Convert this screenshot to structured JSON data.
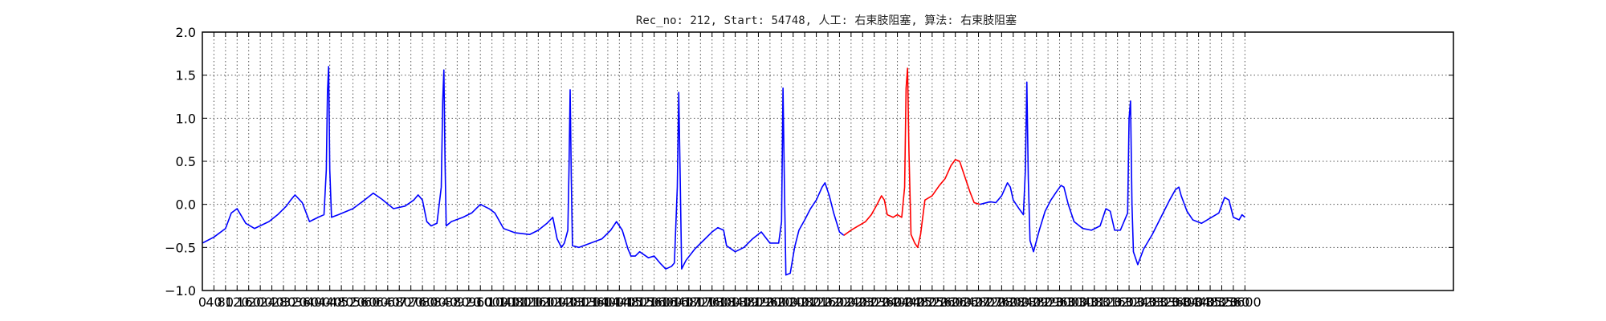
{
  "chart_data": {
    "type": "line",
    "title": "Rec_no: 212, Start: 54748, 人工: 右束肢阻塞, 算法: 右束肢阻塞",
    "xlabel": "",
    "ylabel": "",
    "xlim": [
      0,
      4320
    ],
    "ylim": [
      -1.0,
      2.0
    ],
    "grid": true,
    "y_ticks": [
      -1.0,
      -0.5,
      0.0,
      0.5,
      1.0,
      1.5,
      2.0
    ],
    "y_tick_labels": [
      "−1.0",
      "−0.5",
      "0.0",
      "0.5",
      "1.0",
      "1.5",
      "2.0"
    ],
    "x_ticks": [
      0,
      40,
      80,
      120,
      160,
      200,
      240,
      280,
      320,
      360,
      400,
      440,
      480,
      520,
      560,
      600,
      640,
      680,
      720,
      760,
      800,
      840,
      880,
      920,
      960,
      1000,
      1040,
      1080,
      1120,
      1160,
      1200,
      1240,
      1280,
      1320,
      1360,
      1400,
      1440,
      1480,
      1520,
      1560,
      1600,
      1640,
      1680,
      1720,
      1760,
      1800,
      1840,
      1880,
      1920,
      1960,
      2000,
      2040,
      2080,
      2120,
      2160,
      2200,
      2240,
      2280,
      2320,
      2360,
      2400,
      2440,
      2480,
      2520,
      2560,
      2600,
      2640,
      2680,
      2720,
      2760,
      2800,
      2840,
      2880,
      2920,
      2960,
      3000,
      3040,
      3080,
      3120,
      3160,
      3200,
      3240,
      3280,
      3320,
      3360,
      3400,
      3440,
      3480,
      3520,
      3560,
      3600
    ],
    "x_tick_labels": [
      "0",
      "40",
      "80",
      "120",
      "160",
      "200",
      "240",
      "280",
      "320",
      "360",
      "400",
      "440",
      "480",
      "520",
      "560",
      "600",
      "640",
      "680",
      "720",
      "760",
      "800",
      "840",
      "880",
      "920",
      "960",
      "1000",
      "1040",
      "1080",
      "1120",
      "1160",
      "1200",
      "1240",
      "1280",
      "1320",
      "1360",
      "1400",
      "1440",
      "1480",
      "1520",
      "1560",
      "1600",
      "1640",
      "1680",
      "1720",
      "1760",
      "1800",
      "1840",
      "1880",
      "1920",
      "1960",
      "2000",
      "2040",
      "2080",
      "2120",
      "2160",
      "2200",
      "2240",
      "2280",
      "2320",
      "2360",
      "2400",
      "2440",
      "2480",
      "2520",
      "2560",
      "2600",
      "2640",
      "2680",
      "2720",
      "2760",
      "2800",
      "2840",
      "2880",
      "2920",
      "2960",
      "3000",
      "3040",
      "3080",
      "3120",
      "3160",
      "3200",
      "3240",
      "3280",
      "3320",
      "3360",
      "3400",
      "3440",
      "3480",
      "3520",
      "3560",
      "3600"
    ],
    "series": [
      {
        "color": "#0000ff",
        "segment": "before",
        "points": [
          [
            0,
            -0.45
          ],
          [
            40,
            -0.38
          ],
          [
            80,
            -0.28
          ],
          [
            100,
            -0.1
          ],
          [
            120,
            -0.05
          ],
          [
            150,
            -0.22
          ],
          [
            180,
            -0.28
          ],
          [
            230,
            -0.2
          ],
          [
            260,
            -0.12
          ],
          [
            290,
            -0.02
          ],
          [
            305,
            0.05
          ],
          [
            320,
            0.11
          ],
          [
            345,
            0.02
          ],
          [
            370,
            -0.2
          ],
          [
            400,
            -0.15
          ],
          [
            420,
            -0.12
          ],
          [
            428,
            0.4
          ],
          [
            432,
            1.3
          ],
          [
            436,
            1.6
          ],
          [
            440,
            0.4
          ],
          [
            446,
            -0.15
          ],
          [
            470,
            -0.12
          ],
          [
            520,
            -0.05
          ],
          [
            560,
            0.05
          ],
          [
            590,
            0.13
          ],
          [
            620,
            0.06
          ],
          [
            660,
            -0.05
          ],
          [
            700,
            -0.02
          ],
          [
            730,
            0.05
          ],
          [
            745,
            0.11
          ],
          [
            760,
            0.05
          ],
          [
            775,
            -0.2
          ],
          [
            790,
            -0.25
          ],
          [
            810,
            -0.22
          ],
          [
            825,
            0.2
          ],
          [
            830,
            1.2
          ],
          [
            834,
            1.56
          ],
          [
            838,
            0.5
          ],
          [
            842,
            -0.25
          ],
          [
            860,
            -0.2
          ],
          [
            900,
            -0.15
          ],
          [
            930,
            -0.1
          ],
          [
            960,
            0.0
          ],
          [
            990,
            -0.05
          ],
          [
            1010,
            -0.1
          ],
          [
            1040,
            -0.28
          ],
          [
            1080,
            -0.33
          ],
          [
            1130,
            -0.35
          ],
          [
            1160,
            -0.3
          ],
          [
            1190,
            -0.22
          ],
          [
            1210,
            -0.15
          ],
          [
            1225,
            -0.4
          ],
          [
            1240,
            -0.5
          ],
          [
            1250,
            -0.45
          ],
          [
            1262,
            -0.3
          ],
          [
            1266,
            0.4
          ],
          [
            1270,
            1.33
          ],
          [
            1274,
            0.3
          ],
          [
            1278,
            -0.48
          ],
          [
            1300,
            -0.5
          ],
          [
            1340,
            -0.45
          ],
          [
            1380,
            -0.4
          ],
          [
            1410,
            -0.3
          ],
          [
            1430,
            -0.2
          ],
          [
            1450,
            -0.3
          ],
          [
            1470,
            -0.52
          ],
          [
            1480,
            -0.6
          ],
          [
            1495,
            -0.6
          ],
          [
            1510,
            -0.55
          ],
          [
            1540,
            -0.62
          ],
          [
            1560,
            -0.6
          ],
          [
            1580,
            -0.68
          ],
          [
            1600,
            -0.75
          ],
          [
            1620,
            -0.72
          ],
          [
            1630,
            -0.68
          ],
          [
            1640,
            0.2
          ],
          [
            1645,
            1.3
          ],
          [
            1650,
            0.3
          ],
          [
            1655,
            -0.75
          ],
          [
            1670,
            -0.65
          ],
          [
            1700,
            -0.52
          ],
          [
            1730,
            -0.42
          ],
          [
            1760,
            -0.32
          ],
          [
            1780,
            -0.27
          ],
          [
            1800,
            -0.3
          ],
          [
            1810,
            -0.48
          ],
          [
            1840,
            -0.55
          ],
          [
            1870,
            -0.5
          ],
          [
            1900,
            -0.4
          ],
          [
            1930,
            -0.32
          ],
          [
            1960,
            -0.45
          ],
          [
            1990,
            -0.45
          ],
          [
            2000,
            -0.2
          ],
          [
            2005,
            1.35
          ],
          [
            2010,
            0.2
          ],
          [
            2015,
            -0.82
          ],
          [
            2030,
            -0.8
          ],
          [
            2045,
            -0.5
          ],
          [
            2060,
            -0.3
          ],
          [
            2080,
            -0.18
          ],
          [
            2100,
            -0.05
          ],
          [
            2120,
            0.05
          ],
          [
            2140,
            0.2
          ],
          [
            2150,
            0.25
          ],
          [
            2165,
            0.1
          ],
          [
            2180,
            -0.1
          ],
          [
            2200,
            -0.32
          ],
          [
            2215,
            -0.36
          ]
        ]
      },
      {
        "color": "#ff0000",
        "segment": "highlighted",
        "points": [
          [
            2215,
            -0.36
          ],
          [
            2240,
            -0.3
          ],
          [
            2260,
            -0.26
          ],
          [
            2290,
            -0.2
          ],
          [
            2310,
            -0.12
          ],
          [
            2330,
            0.0
          ],
          [
            2345,
            0.1
          ],
          [
            2355,
            0.05
          ],
          [
            2365,
            -0.12
          ],
          [
            2385,
            -0.15
          ],
          [
            2400,
            -0.12
          ],
          [
            2415,
            -0.15
          ],
          [
            2425,
            0.2
          ],
          [
            2430,
            1.35
          ],
          [
            2435,
            1.58
          ],
          [
            2440,
            0.6
          ],
          [
            2447,
            -0.35
          ],
          [
            2460,
            -0.45
          ],
          [
            2470,
            -0.5
          ],
          [
            2480,
            -0.35
          ],
          [
            2495,
            0.05
          ],
          [
            2520,
            0.1
          ],
          [
            2545,
            0.22
          ],
          [
            2565,
            0.3
          ],
          [
            2585,
            0.45
          ],
          [
            2600,
            0.52
          ],
          [
            2615,
            0.5
          ],
          [
            2630,
            0.35
          ],
          [
            2650,
            0.15
          ],
          [
            2665,
            0.02
          ],
          [
            2685,
            0.0
          ]
        ]
      },
      {
        "color": "#0000ff",
        "segment": "after",
        "points": [
          [
            2685,
            0.0
          ],
          [
            2720,
            0.03
          ],
          [
            2740,
            0.02
          ],
          [
            2760,
            0.1
          ],
          [
            2780,
            0.25
          ],
          [
            2790,
            0.2
          ],
          [
            2800,
            0.05
          ],
          [
            2820,
            -0.05
          ],
          [
            2835,
            -0.12
          ],
          [
            2842,
            0.4
          ],
          [
            2847,
            1.42
          ],
          [
            2852,
            0.3
          ],
          [
            2858,
            -0.42
          ],
          [
            2870,
            -0.55
          ],
          [
            2890,
            -0.3
          ],
          [
            2910,
            -0.08
          ],
          [
            2930,
            0.05
          ],
          [
            2950,
            0.15
          ],
          [
            2965,
            0.22
          ],
          [
            2975,
            0.2
          ],
          [
            2990,
            0.0
          ],
          [
            3010,
            -0.2
          ],
          [
            3040,
            -0.28
          ],
          [
            3070,
            -0.3
          ],
          [
            3100,
            -0.25
          ],
          [
            3120,
            -0.05
          ],
          [
            3135,
            -0.08
          ],
          [
            3150,
            -0.3
          ],
          [
            3170,
            -0.3
          ],
          [
            3195,
            -0.1
          ],
          [
            3200,
            1.0
          ],
          [
            3205,
            1.2
          ],
          [
            3210,
            0.0
          ],
          [
            3215,
            -0.55
          ],
          [
            3230,
            -0.7
          ],
          [
            3250,
            -0.52
          ],
          [
            3280,
            -0.35
          ],
          [
            3310,
            -0.15
          ],
          [
            3340,
            0.05
          ],
          [
            3360,
            0.17
          ],
          [
            3372,
            0.2
          ],
          [
            3380,
            0.1
          ],
          [
            3400,
            -0.08
          ],
          [
            3420,
            -0.18
          ],
          [
            3450,
            -0.22
          ],
          [
            3480,
            -0.16
          ],
          [
            3510,
            -0.1
          ],
          [
            3530,
            0.08
          ],
          [
            3545,
            0.05
          ],
          [
            3560,
            -0.15
          ],
          [
            3580,
            -0.18
          ],
          [
            3590,
            -0.12
          ],
          [
            3600,
            -0.15
          ]
        ]
      }
    ]
  }
}
